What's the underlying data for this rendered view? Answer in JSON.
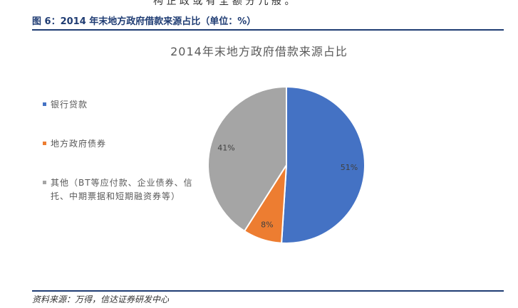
{
  "page": {
    "top_cut_text": "构  正 政 或 有 全 额 分 几 般 。",
    "figure_caption": "图 6：2014 年末地方政府借款来源占比（单位：%）",
    "source_note": "资料来源：万得，信达证券研发中心"
  },
  "chart_data": {
    "type": "pie",
    "title": "2014年末地方政府借款来源占比",
    "categories": [
      "银行贷款",
      "地方政府债券",
      "其他（BT等应付款、企业债券、信托、中期票据和短期融资券等）"
    ],
    "values": [
      51,
      8,
      41
    ],
    "data_labels": [
      "51%",
      "8%",
      "41%"
    ],
    "colors": [
      "#4472C4",
      "#ED7D31",
      "#A5A5A5"
    ],
    "legend_position": "left"
  }
}
